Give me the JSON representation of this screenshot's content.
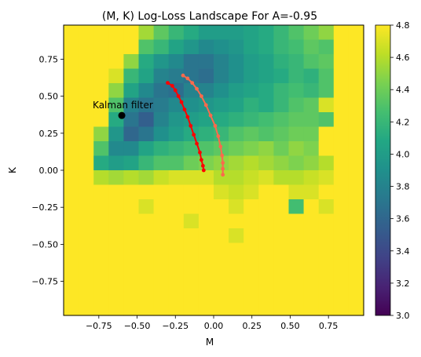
{
  "chart_data": {
    "type": "heatmap",
    "title": "(M, K) Log-Loss Landscape For A=-0.95",
    "xlabel": "M",
    "ylabel": "K",
    "xlim": [
      -0.98,
      0.98
    ],
    "ylim": [
      -0.98,
      0.98
    ],
    "x_ticks": [
      -0.75,
      -0.5,
      -0.25,
      0.0,
      0.25,
      0.5,
      0.75
    ],
    "y_ticks": [
      -0.75,
      -0.5,
      -0.25,
      0.0,
      0.25,
      0.5,
      0.75
    ],
    "x_tick_labels": [
      "−0.75",
      "−0.50",
      "−0.25",
      "0.00",
      "0.25",
      "0.50",
      "0.75"
    ],
    "y_tick_labels": [
      "−0.75",
      "−0.50",
      "−0.25",
      "0.00",
      "0.25",
      "0.50",
      "0.75"
    ],
    "grid": false,
    "colormap": "viridis",
    "colorbar": {
      "range": [
        3.0,
        4.8
      ],
      "ticks": [
        3.0,
        3.2,
        3.4,
        3.6,
        3.8,
        4.0,
        4.2,
        4.4,
        4.6,
        4.8
      ],
      "tick_labels": [
        "3.0",
        "3.2",
        "3.4",
        "3.6",
        "3.8",
        "4.0",
        "4.2",
        "4.4",
        "4.6",
        "4.8"
      ]
    },
    "grid_edges": [
      -0.98,
      -0.882,
      -0.784,
      -0.686,
      -0.588,
      -0.49,
      -0.392,
      -0.294,
      -0.196,
      -0.098,
      0.0,
      0.098,
      0.196,
      0.294,
      0.392,
      0.49,
      0.588,
      0.686,
      0.784,
      0.882,
      0.98
    ],
    "cell_values_top_to_bottom": [
      [
        4.8,
        4.8,
        4.8,
        4.8,
        4.8,
        4.55,
        4.35,
        4.2,
        4.1,
        4.0,
        4.0,
        4.0,
        4.05,
        4.1,
        4.2,
        4.3,
        4.4,
        4.5,
        4.8,
        4.8
      ],
      [
        4.8,
        4.8,
        4.8,
        4.8,
        4.8,
        4.3,
        4.2,
        4.05,
        3.95,
        3.85,
        3.9,
        3.95,
        4.05,
        4.1,
        4.2,
        4.25,
        4.35,
        4.3,
        4.8,
        4.8
      ],
      [
        4.8,
        4.8,
        4.8,
        4.8,
        4.5,
        4.1,
        3.95,
        3.85,
        3.7,
        3.7,
        3.8,
        3.9,
        4.0,
        4.05,
        4.15,
        4.2,
        4.3,
        4.35,
        4.8,
        4.8
      ],
      [
        4.8,
        4.8,
        4.8,
        4.7,
        4.2,
        4.05,
        3.8,
        3.75,
        3.7,
        3.65,
        3.8,
        3.9,
        4.0,
        4.05,
        4.1,
        4.2,
        4.15,
        4.3,
        4.8,
        4.8
      ],
      [
        4.8,
        4.8,
        4.8,
        4.5,
        4.05,
        3.85,
        3.7,
        3.65,
        3.8,
        3.8,
        3.9,
        4.0,
        4.05,
        4.1,
        4.2,
        4.25,
        4.2,
        4.3,
        4.8,
        4.8
      ],
      [
        4.8,
        4.8,
        4.8,
        4.3,
        3.8,
        3.7,
        3.75,
        3.85,
        3.9,
        3.95,
        4.0,
        4.05,
        4.15,
        4.1,
        4.2,
        4.3,
        4.35,
        4.7,
        4.8,
        4.8
      ],
      [
        4.8,
        4.8,
        4.8,
        4.1,
        3.7,
        3.55,
        3.8,
        3.95,
        4.0,
        4.05,
        4.1,
        4.15,
        4.2,
        4.25,
        4.3,
        4.35,
        4.35,
        4.3,
        4.8,
        4.8
      ],
      [
        4.8,
        4.8,
        4.5,
        3.95,
        3.6,
        3.7,
        3.9,
        4.0,
        4.1,
        4.15,
        4.2,
        4.3,
        4.35,
        4.3,
        4.35,
        4.4,
        4.4,
        4.8,
        4.8,
        4.8
      ],
      [
        4.8,
        4.8,
        4.3,
        3.85,
        3.85,
        4.05,
        4.15,
        4.2,
        4.25,
        4.3,
        4.35,
        4.4,
        4.45,
        4.5,
        4.4,
        4.5,
        4.45,
        4.8,
        4.8,
        4.8
      ],
      [
        4.8,
        4.8,
        4.1,
        4.0,
        4.05,
        4.2,
        4.3,
        4.3,
        4.4,
        4.45,
        4.5,
        4.55,
        4.6,
        4.55,
        4.5,
        4.45,
        4.5,
        4.6,
        4.8,
        4.8
      ],
      [
        4.8,
        4.8,
        4.6,
        4.55,
        4.6,
        4.55,
        4.65,
        4.7,
        4.7,
        4.7,
        4.6,
        4.6,
        4.65,
        4.7,
        4.6,
        4.6,
        4.65,
        4.7,
        4.8,
        4.8
      ],
      [
        4.8,
        4.8,
        4.8,
        4.8,
        4.8,
        4.8,
        4.8,
        4.8,
        4.8,
        4.8,
        4.7,
        4.65,
        4.7,
        4.8,
        4.8,
        4.7,
        4.7,
        4.8,
        4.8,
        4.8
      ],
      [
        4.8,
        4.8,
        4.8,
        4.8,
        4.8,
        4.7,
        4.8,
        4.8,
        4.8,
        4.8,
        4.8,
        4.7,
        4.8,
        4.8,
        4.8,
        4.25,
        4.8,
        4.7,
        4.8,
        4.8
      ],
      [
        4.8,
        4.8,
        4.8,
        4.8,
        4.8,
        4.8,
        4.8,
        4.8,
        4.7,
        4.8,
        4.8,
        4.8,
        4.8,
        4.8,
        4.8,
        4.8,
        4.8,
        4.8,
        4.8,
        4.8
      ],
      [
        4.8,
        4.8,
        4.8,
        4.8,
        4.8,
        4.8,
        4.8,
        4.8,
        4.8,
        4.8,
        4.8,
        4.7,
        4.8,
        4.8,
        4.8,
        4.8,
        4.8,
        4.8,
        4.8,
        4.8
      ],
      [
        4.8,
        4.8,
        4.8,
        4.8,
        4.8,
        4.8,
        4.8,
        4.8,
        4.8,
        4.8,
        4.8,
        4.8,
        4.8,
        4.8,
        4.8,
        4.8,
        4.8,
        4.8,
        4.8,
        4.8
      ],
      [
        4.8,
        4.8,
        4.8,
        4.8,
        4.8,
        4.8,
        4.8,
        4.8,
        4.8,
        4.8,
        4.8,
        4.8,
        4.8,
        4.8,
        4.8,
        4.8,
        4.8,
        4.8,
        4.8,
        4.8
      ],
      [
        4.8,
        4.8,
        4.8,
        4.8,
        4.8,
        4.8,
        4.8,
        4.8,
        4.8,
        4.8,
        4.8,
        4.8,
        4.8,
        4.8,
        4.8,
        4.8,
        4.8,
        4.8,
        4.8,
        4.8
      ],
      [
        4.8,
        4.8,
        4.8,
        4.8,
        4.8,
        4.8,
        4.8,
        4.8,
        4.8,
        4.8,
        4.8,
        4.8,
        4.8,
        4.8,
        4.8,
        4.8,
        4.8,
        4.8,
        4.8,
        4.8
      ],
      [
        4.8,
        4.8,
        4.8,
        4.8,
        4.8,
        4.8,
        4.8,
        4.8,
        4.8,
        4.8,
        4.8,
        4.8,
        4.8,
        4.8,
        4.8,
        4.8,
        4.8,
        4.8,
        4.8,
        4.8
      ]
    ],
    "trajectories": [
      {
        "color": "#ff0000",
        "points": [
          [
            -0.3,
            0.59
          ],
          [
            -0.27,
            0.57
          ],
          [
            -0.25,
            0.54
          ],
          [
            -0.23,
            0.5
          ],
          [
            -0.21,
            0.46
          ],
          [
            -0.19,
            0.41
          ],
          [
            -0.17,
            0.36
          ],
          [
            -0.15,
            0.3
          ],
          [
            -0.13,
            0.24
          ],
          [
            -0.11,
            0.18
          ],
          [
            -0.09,
            0.12
          ],
          [
            -0.08,
            0.07
          ],
          [
            -0.07,
            0.03
          ],
          [
            -0.065,
            0.0
          ]
        ]
      },
      {
        "color": "#fa6a4c",
        "points": [
          [
            -0.2,
            0.64
          ],
          [
            -0.17,
            0.62
          ],
          [
            -0.14,
            0.59
          ],
          [
            -0.11,
            0.55
          ],
          [
            -0.08,
            0.5
          ],
          [
            -0.05,
            0.44
          ],
          [
            -0.02,
            0.37
          ],
          [
            0.01,
            0.3
          ],
          [
            0.03,
            0.23
          ],
          [
            0.045,
            0.16
          ],
          [
            0.055,
            0.1
          ],
          [
            0.06,
            0.05
          ],
          [
            0.06,
            0.01
          ],
          [
            0.06,
            -0.03
          ]
        ]
      }
    ],
    "annotations": [
      {
        "text": "Kalman filter",
        "x": -0.6,
        "y": 0.37
      }
    ]
  }
}
